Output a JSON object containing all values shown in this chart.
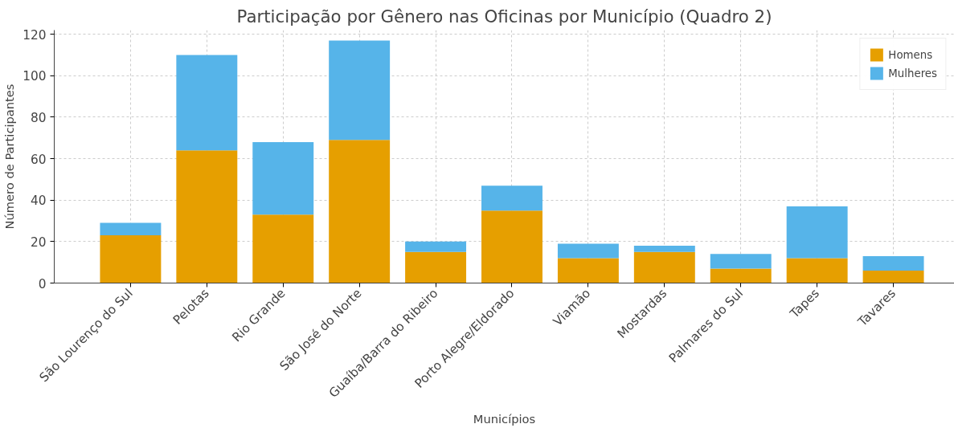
{
  "chart_data": {
    "type": "bar",
    "title": "Participação por Gênero nas Oficinas por Município (Quadro 2)",
    "xlabel": "Municípios",
    "ylabel": "Número de Participantes",
    "categories": [
      "São Lourenço do Sul",
      "Pelotas",
      "Rio Grande",
      "São José do Norte",
      "Guaíba/Barra do Ribeiro",
      "Porto Alegre/Eldorado",
      "Viamão",
      "Mostardas",
      "Palmares do Sul",
      "Tapes",
      "Tavares"
    ],
    "stacked": true,
    "series": [
      {
        "name": "Homens",
        "color": "#e69f00",
        "values": [
          23,
          64,
          33,
          69,
          15,
          35,
          12,
          15,
          7,
          12,
          6
        ]
      },
      {
        "name": "Mulheres",
        "color": "#56b4e9",
        "values": [
          6,
          46,
          35,
          48,
          5,
          12,
          7,
          3,
          7,
          25,
          7
        ]
      }
    ],
    "ylim": [
      0,
      122
    ],
    "yticks": [
      0,
      20,
      40,
      60,
      80,
      100,
      120
    ],
    "grid": true,
    "legend": "top right"
  }
}
